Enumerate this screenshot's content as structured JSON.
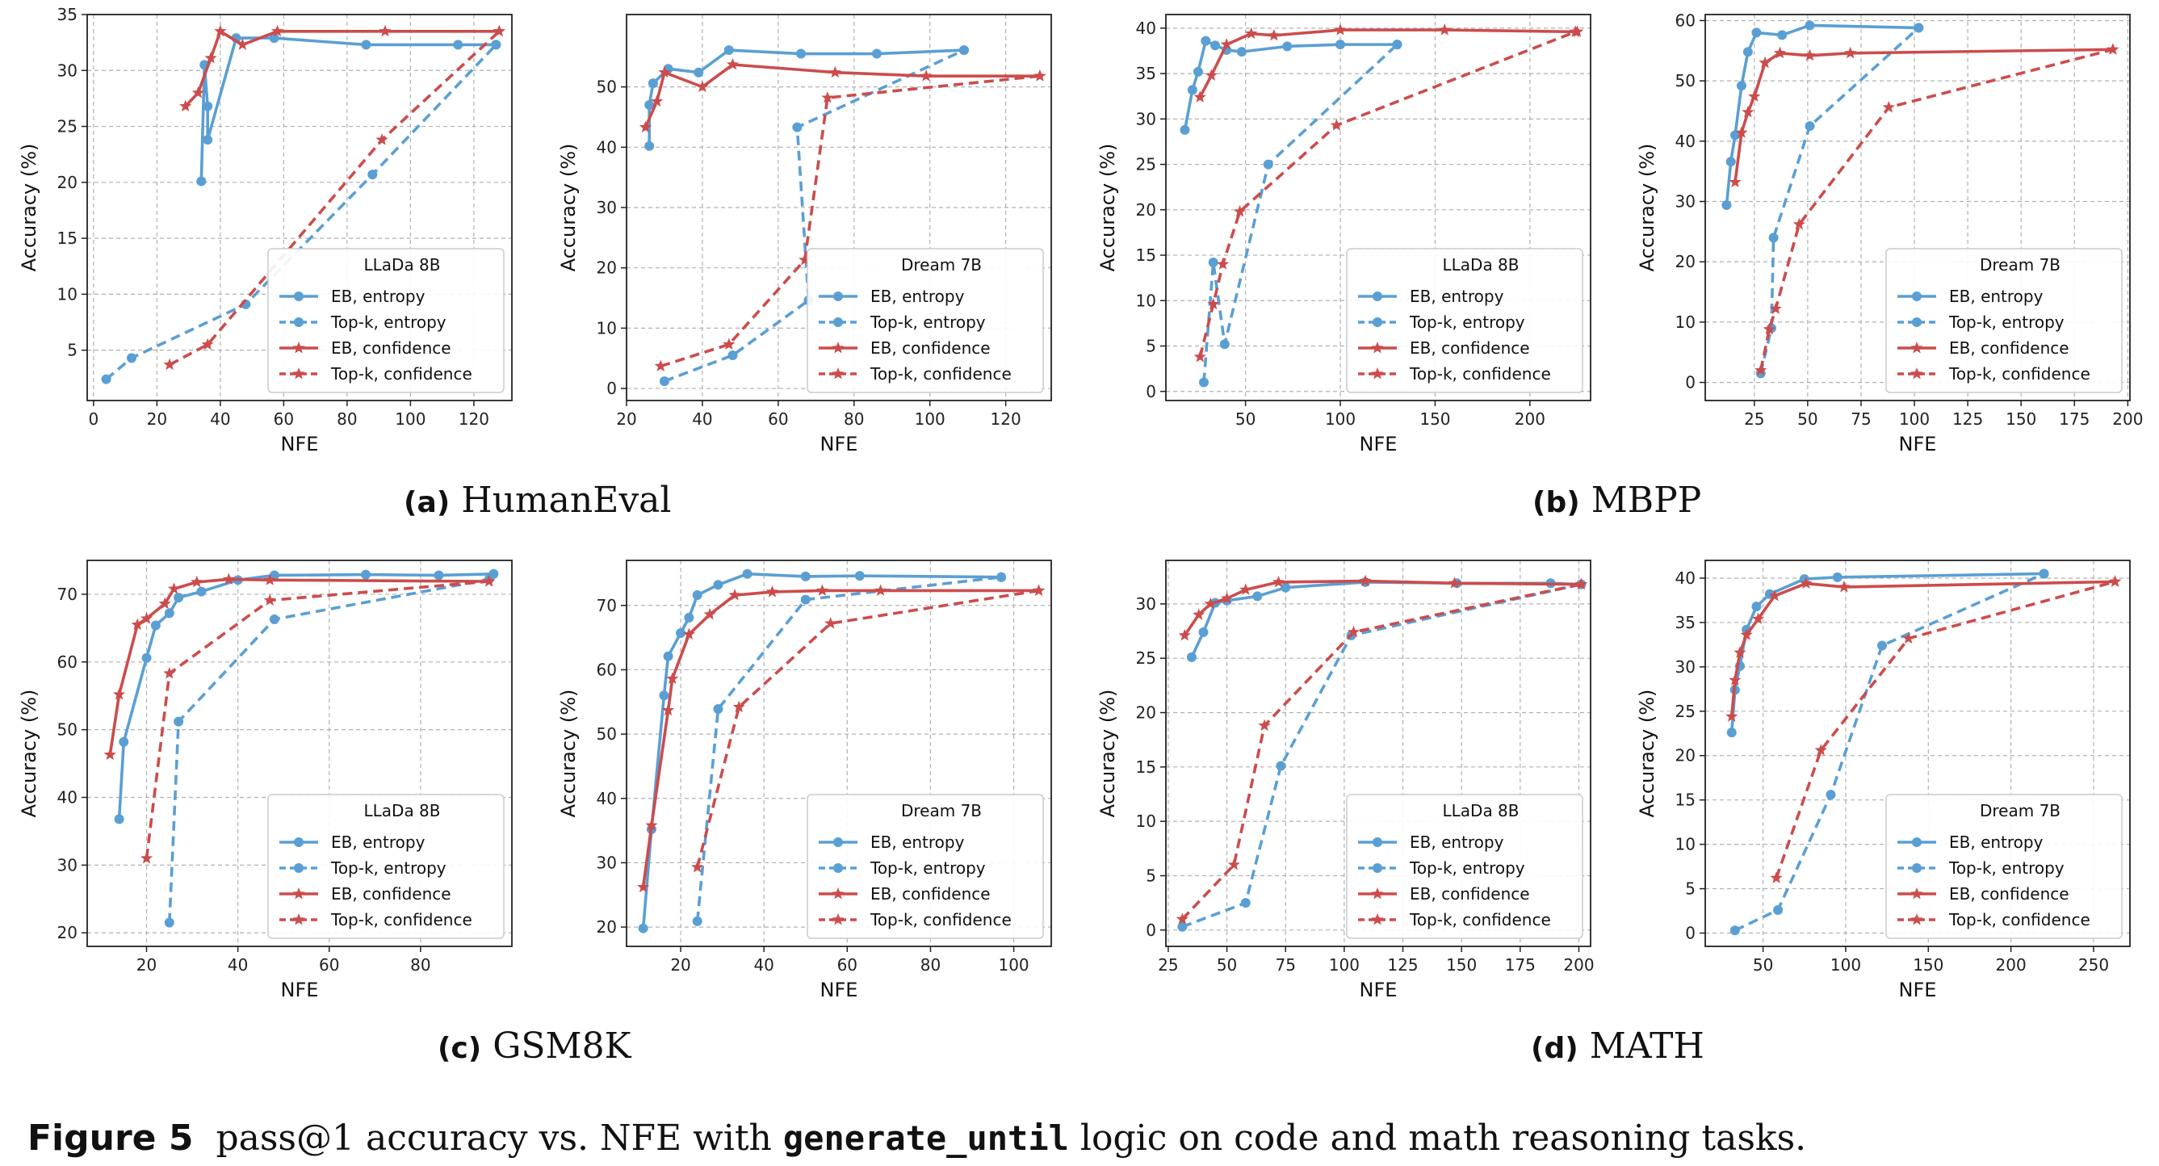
{
  "colors": {
    "eb": "#5a9fd4",
    "topk_blue": "#5a9fd4",
    "eb_conf": "#cc4c4c",
    "grid": "#b0b0b0"
  },
  "legend_labels": [
    "EB, entropy",
    "Top-k, entropy",
    "EB, confidence",
    "Top-k, confidence"
  ],
  "subcaptions": [
    {
      "label": "(a)",
      "text": "HumanEval"
    },
    {
      "label": "(b)",
      "text": "MBPP"
    },
    {
      "label": "(c)",
      "text": "GSM8K"
    },
    {
      "label": "(d)",
      "text": "MATH"
    }
  ],
  "caption": {
    "label": "Figure 5",
    "pre": "pass@1 accuracy vs. NFE with",
    "code": "generate_until",
    "post": "logic on code and math reasoning tasks."
  },
  "chart_data": [
    {
      "type": "line",
      "legend_title": "LLaDa 8B",
      "xlabel": "NFE",
      "ylabel": "Accuracy (%)",
      "xlim": [
        -2,
        132
      ],
      "ylim": [
        0.5,
        35
      ],
      "xticks": [
        0,
        20,
        40,
        60,
        80,
        100,
        120
      ],
      "yticks": [
        5,
        10,
        15,
        20,
        25,
        30,
        35
      ],
      "grid": true,
      "legend_position": "lower-right",
      "series": [
        {
          "name": "EB, entropy",
          "x": [
            34,
            35,
            36,
            36,
            45,
            57,
            86,
            115,
            127
          ],
          "y": [
            20.1,
            30.5,
            26.8,
            23.8,
            32.9,
            32.9,
            32.3,
            32.3,
            32.3
          ]
        },
        {
          "name": "Top-k, entropy",
          "x": [
            4,
            12,
            48,
            88,
            127
          ],
          "y": [
            2.4,
            4.3,
            9.1,
            20.7,
            32.3
          ]
        },
        {
          "name": "EB, confidence",
          "x": [
            29,
            33,
            37,
            40,
            47,
            58,
            92,
            128
          ],
          "y": [
            26.8,
            28.0,
            31.1,
            33.5,
            32.3,
            33.5,
            33.5,
            33.5
          ]
        },
        {
          "name": "Top-k, confidence",
          "x": [
            24,
            36,
            91,
            128
          ],
          "y": [
            3.7,
            5.5,
            23.8,
            33.5
          ]
        }
      ]
    },
    {
      "type": "line",
      "legend_title": "Dream 7B",
      "xlabel": "NFE",
      "ylabel": "Accuracy (%)",
      "xlim": [
        20,
        132
      ],
      "ylim": [
        -2,
        62
      ],
      "xticks": [
        20,
        40,
        60,
        80,
        100,
        120
      ],
      "yticks": [
        0,
        10,
        20,
        30,
        40,
        50
      ],
      "grid": true,
      "legend_position": "lower-right",
      "series": [
        {
          "name": "EB, entropy",
          "x": [
            26,
            26,
            27,
            31,
            39,
            47,
            66,
            86,
            109
          ],
          "y": [
            40.2,
            47.0,
            50.6,
            53.0,
            52.4,
            56.1,
            55.5,
            55.5,
            56.1
          ]
        },
        {
          "name": "Top-k, entropy",
          "x": [
            30,
            48,
            68,
            65,
            109
          ],
          "y": [
            1.2,
            5.5,
            14.6,
            43.3,
            56.1
          ]
        },
        {
          "name": "EB, confidence",
          "x": [
            25,
            28,
            30,
            40,
            48,
            75,
            99,
            129
          ],
          "y": [
            43.3,
            47.6,
            52.4,
            50.0,
            53.7,
            52.4,
            51.8,
            51.8
          ]
        },
        {
          "name": "Top-k, confidence",
          "x": [
            29,
            47,
            67,
            73,
            129
          ],
          "y": [
            3.7,
            7.3,
            21.3,
            48.2,
            51.8
          ]
        }
      ]
    },
    {
      "type": "line",
      "legend_title": "LLaDa 8B",
      "xlabel": "NFE",
      "ylabel": "Accuracy (%)",
      "xlim": [
        8,
        232
      ],
      "ylim": [
        -1,
        41.5
      ],
      "xticks": [
        50,
        100,
        150,
        200
      ],
      "yticks": [
        0,
        5,
        10,
        15,
        20,
        25,
        30,
        35,
        40
      ],
      "grid": true,
      "legend_position": "lower-right",
      "series": [
        {
          "name": "EB, entropy",
          "x": [
            18,
            22,
            25,
            29,
            34,
            40,
            48,
            72,
            100,
            130
          ],
          "y": [
            28.8,
            33.2,
            35.2,
            38.6,
            38.1,
            37.6,
            37.4,
            38.0,
            38.2,
            38.2
          ]
        },
        {
          "name": "Top-k, entropy",
          "x": [
            28,
            33,
            39,
            62,
            130
          ],
          "y": [
            1.0,
            14.2,
            5.2,
            25.0,
            38.2
          ]
        },
        {
          "name": "EB, confidence",
          "x": [
            26,
            32,
            40,
            53,
            65,
            100,
            155,
            225
          ],
          "y": [
            32.4,
            34.8,
            38.2,
            39.4,
            39.2,
            39.8,
            39.8,
            39.6
          ]
        },
        {
          "name": "Top-k, confidence",
          "x": [
            26,
            33,
            38,
            47,
            98,
            224
          ],
          "y": [
            3.8,
            9.6,
            14.0,
            19.8,
            29.3,
            39.6
          ]
        }
      ]
    },
    {
      "type": "line",
      "legend_title": "Dream 7B",
      "xlabel": "NFE",
      "ylabel": "Accuracy (%)",
      "xlim": [
        2,
        201
      ],
      "ylim": [
        -3,
        61
      ],
      "xticks": [
        25,
        50,
        75,
        100,
        125,
        150,
        175,
        200
      ],
      "yticks": [
        0,
        10,
        20,
        30,
        40,
        50,
        60
      ],
      "grid": true,
      "legend_position": "lower-right",
      "series": [
        {
          "name": "EB, entropy",
          "x": [
            12,
            14,
            16,
            19,
            22,
            26,
            38,
            51,
            102
          ],
          "y": [
            29.4,
            36.6,
            41.0,
            49.2,
            54.8,
            58.0,
            57.6,
            59.2,
            58.8
          ]
        },
        {
          "name": "Top-k, entropy",
          "x": [
            28,
            33,
            34,
            51,
            102
          ],
          "y": [
            1.5,
            9.0,
            24.0,
            42.5,
            58.8
          ]
        },
        {
          "name": "EB, confidence",
          "x": [
            16,
            19,
            22,
            25,
            30,
            37,
            51,
            70,
            193
          ],
          "y": [
            33.2,
            41.4,
            44.8,
            47.4,
            53.0,
            54.6,
            54.2,
            54.6,
            55.2
          ]
        },
        {
          "name": "Top-k, confidence",
          "x": [
            28,
            32,
            35,
            46,
            88,
            193
          ],
          "y": [
            2.0,
            8.8,
            12.2,
            26.2,
            45.6,
            55.2
          ]
        }
      ]
    },
    {
      "type": "line",
      "legend_title": "LLaDa 8B",
      "xlabel": "NFE",
      "ylabel": "Accuracy (%)",
      "xlim": [
        7,
        100
      ],
      "ylim": [
        18,
        75
      ],
      "xticks": [
        20,
        40,
        60,
        80
      ],
      "yticks": [
        20,
        30,
        40,
        50,
        60,
        70
      ],
      "grid": true,
      "legend_position": "lower-right",
      "series": [
        {
          "name": "EB, entropy",
          "x": [
            14,
            15,
            20,
            22,
            25,
            27,
            32,
            40,
            48,
            68,
            84,
            96
          ],
          "y": [
            36.8,
            48.2,
            60.6,
            65.4,
            67.2,
            69.5,
            70.4,
            72.1,
            72.8,
            72.9,
            72.8,
            73.0
          ]
        },
        {
          "name": "Top-k, entropy",
          "x": [
            25,
            27,
            48,
            95
          ],
          "y": [
            21.5,
            51.2,
            66.3,
            72.2
          ]
        },
        {
          "name": "EB, confidence",
          "x": [
            12,
            14,
            18,
            20,
            24,
            26,
            31,
            38,
            47,
            95
          ],
          "y": [
            46.3,
            55.2,
            65.5,
            66.4,
            68.6,
            70.8,
            71.8,
            72.2,
            72.1,
            71.9
          ]
        },
        {
          "name": "Top-k, confidence",
          "x": [
            20,
            25,
            47,
            95
          ],
          "y": [
            31.0,
            58.3,
            69.1,
            71.9
          ]
        }
      ]
    },
    {
      "type": "line",
      "legend_title": "Dream 7B",
      "xlabel": "NFE",
      "ylabel": "Accuracy (%)",
      "xlim": [
        7,
        109
      ],
      "ylim": [
        17,
        77
      ],
      "xticks": [
        20,
        40,
        60,
        80,
        100
      ],
      "yticks": [
        20,
        30,
        40,
        50,
        60,
        70
      ],
      "grid": true,
      "legend_position": "lower-right",
      "series": [
        {
          "name": "EB, entropy",
          "x": [
            11,
            13,
            16,
            17,
            20,
            22,
            24,
            29,
            36,
            50,
            63,
            97
          ],
          "y": [
            19.8,
            35.2,
            56.0,
            62.1,
            65.7,
            68.1,
            71.6,
            73.2,
            74.9,
            74.5,
            74.6,
            74.4
          ]
        },
        {
          "name": "Top-k, entropy",
          "x": [
            24,
            29,
            50,
            97
          ],
          "y": [
            20.9,
            53.9,
            70.9,
            74.4
          ]
        },
        {
          "name": "EB, confidence",
          "x": [
            11,
            13,
            17,
            18,
            22,
            27,
            33,
            42,
            54,
            68,
            106
          ],
          "y": [
            26.2,
            35.8,
            53.7,
            58.6,
            65.5,
            68.6,
            71.6,
            72.1,
            72.3,
            72.3,
            72.3
          ]
        },
        {
          "name": "Top-k, confidence",
          "x": [
            24,
            34,
            56,
            106
          ],
          "y": [
            29.3,
            54.2,
            67.2,
            72.3
          ]
        }
      ]
    },
    {
      "type": "line",
      "legend_title": "LLaDa 8B",
      "xlabel": "NFE",
      "ylabel": "Accuracy (%)",
      "xlim": [
        24,
        205
      ],
      "ylim": [
        -1.5,
        34
      ],
      "xticks": [
        25,
        50,
        75,
        100,
        125,
        150,
        175,
        200
      ],
      "yticks": [
        0,
        5,
        10,
        15,
        20,
        25,
        30
      ],
      "grid": true,
      "legend_position": "lower-right",
      "series": [
        {
          "name": "EB, entropy",
          "x": [
            35,
            40,
            45,
            50,
            63,
            75,
            109,
            148,
            188,
            201
          ],
          "y": [
            25.1,
            27.4,
            30.1,
            30.3,
            30.7,
            31.5,
            32.0,
            31.9,
            31.9,
            31.8
          ]
        },
        {
          "name": "Top-k, entropy",
          "x": [
            31,
            58,
            73,
            103,
            201
          ],
          "y": [
            0.3,
            2.5,
            15.1,
            27.1,
            31.8
          ]
        },
        {
          "name": "EB, confidence",
          "x": [
            32,
            38,
            43,
            50,
            58,
            72,
            109,
            147,
            201
          ],
          "y": [
            27.1,
            29.0,
            30.0,
            30.5,
            31.3,
            32.0,
            32.1,
            31.9,
            31.8
          ]
        },
        {
          "name": "Top-k, confidence",
          "x": [
            31,
            53,
            66,
            104,
            201
          ],
          "y": [
            1.0,
            6.0,
            18.8,
            27.4,
            31.8
          ]
        }
      ]
    },
    {
      "type": "line",
      "legend_title": "Dream 7B",
      "xlabel": "NFE",
      "ylabel": "Accuracy (%)",
      "xlim": [
        15,
        272
      ],
      "ylim": [
        -1.5,
        42
      ],
      "xticks": [
        50,
        100,
        150,
        200,
        250
      ],
      "yticks": [
        0,
        5,
        10,
        15,
        20,
        25,
        30,
        35,
        40
      ],
      "grid": true,
      "legend_position": "lower-right",
      "series": [
        {
          "name": "EB, entropy",
          "x": [
            31,
            33,
            36,
            40,
            46,
            54,
            75,
            95,
            220
          ],
          "y": [
            22.6,
            27.4,
            30.1,
            34.2,
            36.8,
            38.2,
            39.9,
            40.1,
            40.5
          ]
        },
        {
          "name": "Top-k, entropy",
          "x": [
            33,
            59,
            91,
            122,
            220
          ],
          "y": [
            0.3,
            2.6,
            15.6,
            32.4,
            40.5
          ]
        },
        {
          "name": "EB, confidence",
          "x": [
            31,
            33,
            36,
            40,
            47,
            57,
            76,
            99,
            263
          ],
          "y": [
            24.4,
            28.5,
            31.6,
            33.6,
            35.4,
            38.0,
            39.4,
            39.0,
            39.6
          ]
        },
        {
          "name": "Top-k, confidence",
          "x": [
            58,
            85,
            138,
            263
          ],
          "y": [
            6.2,
            20.6,
            33.2,
            39.6
          ]
        }
      ]
    }
  ]
}
